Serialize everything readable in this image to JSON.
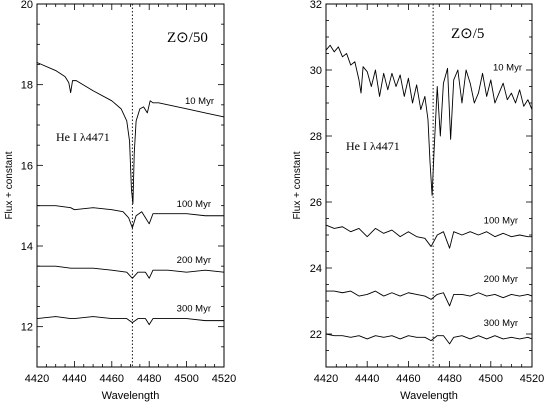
{
  "chart_data": [
    {
      "type": "line",
      "panel_label": "Z⊙/50",
      "xlabel": "Wavelength",
      "ylabel": "Flux + constant",
      "xlim": [
        4420,
        4520
      ],
      "ylim": [
        11,
        20
      ],
      "x_ticks": [
        "4420",
        "4440",
        "4460",
        "4480",
        "4500",
        "4520"
      ],
      "y_ticks": [
        "12",
        "14",
        "16",
        "18",
        "20"
      ],
      "line_label": "He I λ4471",
      "reference_line_x": 4471,
      "series": [
        {
          "name": "10 Myr",
          "x": [
            4420,
            4430,
            4435,
            4437,
            4438,
            4439,
            4441,
            4450,
            4460,
            4465,
            4468,
            4469.5,
            4470.5,
            4471.3,
            4472,
            4473,
            4475,
            4477,
            4479,
            4480.5,
            4482,
            4485,
            4490,
            4500,
            4510,
            4520
          ],
          "y": [
            18.55,
            18.35,
            18.2,
            18.05,
            17.8,
            18.1,
            18.1,
            17.85,
            17.6,
            17.4,
            17.1,
            16.6,
            15.4,
            15.05,
            16.3,
            17.1,
            17.4,
            17.45,
            17.3,
            17.6,
            17.55,
            17.55,
            17.5,
            17.4,
            17.3,
            17.2
          ]
        },
        {
          "name": "100 Myr",
          "x": [
            4420,
            4430,
            4438,
            4440,
            4450,
            4460,
            4466,
            4469,
            4471,
            4473,
            4476,
            4478,
            4480,
            4482,
            4490,
            4500,
            4510,
            4520
          ],
          "y": [
            15.0,
            15.0,
            14.95,
            14.9,
            14.95,
            14.9,
            14.85,
            14.7,
            14.45,
            14.75,
            14.85,
            14.7,
            14.55,
            14.8,
            14.8,
            14.8,
            14.75,
            14.75
          ]
        },
        {
          "name": "200 Myr",
          "x": [
            4420,
            4430,
            4438,
            4440,
            4450,
            4460,
            4468,
            4471,
            4474,
            4478,
            4480,
            4482,
            4490,
            4500,
            4510,
            4520
          ],
          "y": [
            13.5,
            13.5,
            13.45,
            13.45,
            13.45,
            13.4,
            13.35,
            13.2,
            13.35,
            13.35,
            13.2,
            13.4,
            13.4,
            13.35,
            13.4,
            13.35
          ]
        },
        {
          "name": "300 Myr",
          "x": [
            4420,
            4430,
            4438,
            4440,
            4450,
            4460,
            4468,
            4471,
            4474,
            4478,
            4480,
            4482,
            4490,
            4500,
            4510,
            4520
          ],
          "y": [
            12.2,
            12.25,
            12.2,
            12.2,
            12.25,
            12.2,
            12.2,
            12.1,
            12.2,
            12.2,
            12.05,
            12.2,
            12.2,
            12.2,
            12.15,
            12.15
          ]
        }
      ]
    },
    {
      "type": "line",
      "panel_label": "Z⊙/5",
      "xlabel": "Wavelength",
      "ylabel": "Flux + constant",
      "xlim": [
        4420,
        4520
      ],
      "ylim": [
        21,
        32
      ],
      "x_ticks": [
        "4420",
        "4440",
        "4460",
        "4480",
        "4500",
        "4520"
      ],
      "y_ticks": [
        "22",
        "24",
        "26",
        "28",
        "30",
        "32"
      ],
      "line_label": "He I λ4471",
      "reference_line_x": 4472,
      "series": [
        {
          "name": "10 Myr",
          "x": [
            4420,
            4422,
            4424,
            4426,
            4428,
            4430,
            4432,
            4434,
            4436,
            4437,
            4438,
            4440,
            4442,
            4444,
            4446,
            4448,
            4450,
            4452,
            4454,
            4456,
            4458,
            4460,
            4462,
            4464,
            4466,
            4468,
            4469.5,
            4470.5,
            4471.5,
            4472.5,
            4474,
            4475.5,
            4477,
            4479,
            4480.5,
            4482,
            4484,
            4486,
            4488,
            4490,
            4492,
            4494,
            4496,
            4498,
            4500,
            4502,
            4504,
            4506,
            4508,
            4510,
            4512,
            4514,
            4516,
            4518,
            4520
          ],
          "y": [
            30.6,
            30.75,
            30.55,
            30.7,
            30.4,
            30.5,
            30.15,
            30.25,
            29.7,
            29.3,
            30.1,
            29.95,
            29.5,
            30.0,
            29.2,
            29.9,
            29.4,
            29.9,
            29.5,
            29.85,
            29.2,
            29.75,
            29.0,
            29.55,
            28.8,
            29.2,
            28.5,
            27.2,
            26.2,
            27.6,
            29.5,
            28.0,
            29.6,
            30.05,
            27.9,
            29.7,
            30.0,
            29.0,
            30.0,
            29.6,
            29.0,
            29.3,
            29.9,
            29.2,
            29.7,
            29.0,
            29.3,
            29.6,
            29.1,
            29.3,
            29.0,
            29.4,
            28.9,
            29.1,
            28.8
          ]
        },
        {
          "name": "100 Myr",
          "x": [
            4420,
            4424,
            4428,
            4432,
            4436,
            4440,
            4444,
            4448,
            4452,
            4456,
            4460,
            4464,
            4468,
            4471,
            4474,
            4477,
            4480,
            4482,
            4486,
            4490,
            4494,
            4498,
            4502,
            4506,
            4510,
            4514,
            4518,
            4520
          ],
          "y": [
            25.3,
            25.2,
            25.25,
            25.1,
            25.2,
            24.95,
            25.2,
            25.05,
            25.15,
            24.95,
            25.1,
            24.95,
            24.9,
            24.65,
            25.0,
            25.1,
            24.6,
            25.1,
            25.0,
            25.1,
            25.0,
            25.1,
            24.95,
            25.05,
            24.95,
            25.0,
            24.95,
            24.95
          ]
        },
        {
          "name": "200 Myr",
          "x": [
            4420,
            4424,
            4428,
            4432,
            4436,
            4440,
            4444,
            4448,
            4452,
            4456,
            4460,
            4464,
            4468,
            4471,
            4474,
            4477,
            4480,
            4482,
            4486,
            4490,
            4494,
            4498,
            4502,
            4506,
            4510,
            4514,
            4518,
            4520
          ],
          "y": [
            23.3,
            23.3,
            23.25,
            23.3,
            23.15,
            23.2,
            23.3,
            23.15,
            23.25,
            23.15,
            23.25,
            23.2,
            23.15,
            23.05,
            23.2,
            23.25,
            22.85,
            23.2,
            23.2,
            23.15,
            23.25,
            23.15,
            23.2,
            23.1,
            23.2,
            23.15,
            23.2,
            23.15
          ]
        },
        {
          "name": "300 Myr",
          "x": [
            4420,
            4424,
            4428,
            4432,
            4436,
            4440,
            4444,
            4448,
            4452,
            4456,
            4460,
            4464,
            4468,
            4471,
            4474,
            4477,
            4480,
            4482,
            4486,
            4490,
            4494,
            4498,
            4502,
            4506,
            4510,
            4514,
            4518,
            4520
          ],
          "y": [
            22.0,
            21.95,
            21.95,
            21.9,
            21.95,
            21.85,
            21.95,
            21.9,
            21.95,
            21.85,
            21.95,
            21.9,
            21.9,
            21.8,
            21.95,
            21.95,
            21.7,
            21.9,
            21.95,
            21.85,
            21.95,
            21.85,
            21.95,
            21.85,
            21.9,
            21.85,
            21.9,
            21.85
          ]
        }
      ]
    }
  ]
}
